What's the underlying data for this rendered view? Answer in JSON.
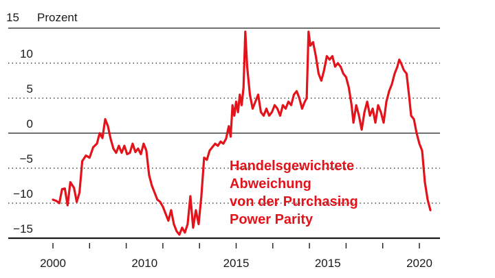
{
  "chart_data": {
    "type": "line",
    "title": "",
    "unit_label": "Prozent",
    "xlabel": "",
    "ylabel": "",
    "ylim": [
      -15,
      15
    ],
    "y_ticks": [
      "15",
      "10",
      "5",
      "0",
      "−5",
      "−10",
      "−15"
    ],
    "x_tick_labels": [
      "2000",
      "2010",
      "2015",
      "2015",
      "2020"
    ],
    "grid": "dotted horizontal",
    "annotation": [
      "Handelsgewichtete",
      "Abweichung",
      "von der Purchasing",
      "Power Parity"
    ],
    "colors": {
      "line": "#e3131b",
      "annotation": "#e3131b",
      "axis": "#1a1a1a",
      "grid": "#444444"
    },
    "series": [
      {
        "points": [
          [
            2000.0,
            -9.5
          ],
          [
            2000.2,
            -9.7
          ],
          [
            2000.35,
            -10.0
          ],
          [
            2000.5,
            -8.0
          ],
          [
            2000.65,
            -7.9
          ],
          [
            2000.8,
            -10.3
          ],
          [
            2000.95,
            -7.0
          ],
          [
            2001.15,
            -7.8
          ],
          [
            2001.3,
            -9.8
          ],
          [
            2001.45,
            -8.5
          ],
          [
            2001.6,
            -4.0
          ],
          [
            2001.8,
            -3.2
          ],
          [
            2002.0,
            -3.5
          ],
          [
            2002.2,
            -2.0
          ],
          [
            2002.4,
            -1.5
          ],
          [
            2002.55,
            0.0
          ],
          [
            2002.7,
            -0.7
          ],
          [
            2002.85,
            2.0
          ],
          [
            2003.0,
            1.0
          ],
          [
            2003.15,
            -0.8
          ],
          [
            2003.3,
            -2.2
          ],
          [
            2003.45,
            -2.8
          ],
          [
            2003.6,
            -1.8
          ],
          [
            2003.75,
            -2.8
          ],
          [
            2003.9,
            -1.8
          ],
          [
            2004.05,
            -3.0
          ],
          [
            2004.2,
            -2.8
          ],
          [
            2004.35,
            -1.5
          ],
          [
            2004.5,
            -2.7
          ],
          [
            2004.65,
            -2.2
          ],
          [
            2004.8,
            -3.0
          ],
          [
            2004.95,
            -1.5
          ],
          [
            2005.1,
            -2.5
          ],
          [
            2005.25,
            -6.0
          ],
          [
            2005.4,
            -7.5
          ],
          [
            2005.55,
            -8.5
          ],
          [
            2005.7,
            -9.5
          ],
          [
            2005.85,
            -9.8
          ],
          [
            2006.0,
            -10.5
          ],
          [
            2006.15,
            -11.5
          ],
          [
            2006.3,
            -12.5
          ],
          [
            2006.45,
            -11.0
          ],
          [
            2006.6,
            -13.0
          ],
          [
            2006.75,
            -14.0
          ],
          [
            2006.9,
            -14.5
          ],
          [
            2007.05,
            -13.5
          ],
          [
            2007.2,
            -14.2
          ],
          [
            2007.35,
            -13.0
          ],
          [
            2007.5,
            -9.0
          ],
          [
            2007.65,
            -13.5
          ],
          [
            2007.8,
            -11.0
          ],
          [
            2007.95,
            -13.0
          ],
          [
            2008.1,
            -9.0
          ],
          [
            2008.25,
            -3.5
          ],
          [
            2008.4,
            -3.8
          ],
          [
            2008.55,
            -2.5
          ],
          [
            2008.7,
            -2.0
          ],
          [
            2008.85,
            -1.5
          ],
          [
            2009.0,
            -1.8
          ],
          [
            2009.15,
            -1.2
          ],
          [
            2009.3,
            -1.5
          ],
          [
            2009.45,
            -0.8
          ],
          [
            2009.6,
            1.0
          ],
          [
            2009.7,
            -0.5
          ],
          [
            2009.8,
            4.0
          ],
          [
            2009.9,
            2.5
          ],
          [
            2010.0,
            4.5
          ],
          [
            2010.1,
            3.0
          ],
          [
            2010.2,
            5.5
          ],
          [
            2010.3,
            4.0
          ],
          [
            2010.4,
            6.5
          ],
          [
            2010.5,
            14.5
          ],
          [
            2010.6,
            9.5
          ],
          [
            2010.75,
            5.5
          ],
          [
            2010.9,
            3.5
          ],
          [
            2011.05,
            4.5
          ],
          [
            2011.2,
            5.5
          ],
          [
            2011.35,
            3.0
          ],
          [
            2011.5,
            2.5
          ],
          [
            2011.65,
            3.5
          ],
          [
            2011.8,
            2.5
          ],
          [
            2011.95,
            3.0
          ],
          [
            2012.1,
            4.0
          ],
          [
            2012.25,
            3.5
          ],
          [
            2012.4,
            2.5
          ],
          [
            2012.55,
            4.0
          ],
          [
            2012.7,
            3.5
          ],
          [
            2012.85,
            4.5
          ],
          [
            2013.0,
            4.0
          ],
          [
            2013.15,
            5.5
          ],
          [
            2013.3,
            6.0
          ],
          [
            2013.45,
            5.0
          ],
          [
            2013.6,
            3.5
          ],
          [
            2013.75,
            4.5
          ],
          [
            2013.85,
            5.0
          ],
          [
            2013.95,
            14.5
          ],
          [
            2014.05,
            12.5
          ],
          [
            2014.2,
            13.0
          ],
          [
            2014.35,
            11.0
          ],
          [
            2014.5,
            8.5
          ],
          [
            2014.65,
            7.5
          ],
          [
            2014.8,
            9.0
          ],
          [
            2014.95,
            11.0
          ],
          [
            2015.1,
            10.5
          ],
          [
            2015.25,
            11.0
          ],
          [
            2015.4,
            9.5
          ],
          [
            2015.55,
            10.0
          ],
          [
            2015.7,
            9.5
          ],
          [
            2015.85,
            8.5
          ],
          [
            2016.0,
            8.0
          ],
          [
            2016.15,
            6.5
          ],
          [
            2016.3,
            4.0
          ],
          [
            2016.4,
            1.5
          ],
          [
            2016.55,
            4.0
          ],
          [
            2016.7,
            2.5
          ],
          [
            2016.85,
            0.5
          ],
          [
            2017.0,
            3.0
          ],
          [
            2017.15,
            4.5
          ],
          [
            2017.3,
            2.5
          ],
          [
            2017.45,
            3.5
          ],
          [
            2017.6,
            1.5
          ],
          [
            2017.75,
            4.0
          ],
          [
            2017.9,
            3.0
          ],
          [
            2018.05,
            1.5
          ],
          [
            2018.2,
            4.5
          ],
          [
            2018.35,
            6.0
          ],
          [
            2018.5,
            7.0
          ],
          [
            2018.65,
            8.5
          ],
          [
            2018.8,
            9.5
          ],
          [
            2018.9,
            10.5
          ],
          [
            2019.0,
            10.0
          ],
          [
            2019.15,
            9.0
          ],
          [
            2019.3,
            8.5
          ],
          [
            2019.45,
            5.0
          ],
          [
            2019.55,
            2.5
          ],
          [
            2019.7,
            2.0
          ],
          [
            2019.85,
            0.0
          ],
          [
            2020.0,
            -1.5
          ],
          [
            2020.15,
            -2.5
          ],
          [
            2020.3,
            -7.0
          ],
          [
            2020.45,
            -9.5
          ],
          [
            2020.6,
            -11.0
          ]
        ]
      }
    ]
  }
}
